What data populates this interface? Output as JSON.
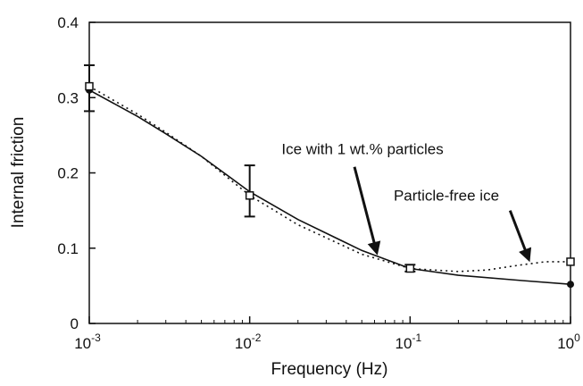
{
  "chart_data": {
    "type": "line",
    "xscale": "log",
    "xlim": [
      0.001,
      1
    ],
    "ylim": [
      0,
      0.4
    ],
    "grid": false,
    "xlabel": "Frequency (Hz)",
    "ylabel": "Internal friction",
    "x_ticks": [
      {
        "value": 0.001,
        "base": "10",
        "exp": "-3"
      },
      {
        "value": 0.01,
        "base": "10",
        "exp": "-2"
      },
      {
        "value": 0.1,
        "base": "10",
        "exp": "-1"
      },
      {
        "value": 1,
        "base": "10",
        "exp": "0"
      }
    ],
    "y_ticks": [
      {
        "value": 0,
        "label": "0"
      },
      {
        "value": 0.1,
        "label": "0.1"
      },
      {
        "value": 0.2,
        "label": "0.2"
      },
      {
        "value": 0.3,
        "label": "0.3"
      },
      {
        "value": 0.4,
        "label": "0.4"
      }
    ],
    "series": [
      {
        "style": "solid",
        "color": "#111111",
        "x": [
          0.001,
          0.002,
          0.003,
          0.005,
          0.01,
          0.02,
          0.05,
          0.1,
          0.2,
          0.5,
          1
        ],
        "y": [
          0.31,
          0.275,
          0.252,
          0.222,
          0.175,
          0.138,
          0.097,
          0.073,
          0.064,
          0.057,
          0.052
        ],
        "markers": [
          {
            "x": 0.001,
            "y": 0.31,
            "shape": "circle"
          },
          {
            "x": 1,
            "y": 0.052,
            "shape": "circle"
          }
        ]
      },
      {
        "style": "dotted",
        "color": "#111111",
        "x": [
          0.001,
          0.002,
          0.003,
          0.005,
          0.01,
          0.02,
          0.05,
          0.1,
          0.2,
          0.3,
          0.5,
          0.7,
          1
        ],
        "y": [
          0.315,
          0.278,
          0.254,
          0.222,
          0.17,
          0.131,
          0.092,
          0.073,
          0.069,
          0.071,
          0.078,
          0.082,
          0.082
        ],
        "markers": [
          {
            "x": 0.001,
            "y": 0.315,
            "err": [
              0.282,
              0.343
            ]
          },
          {
            "x": 0.01,
            "y": 0.17,
            "err": [
              0.142,
              0.21
            ]
          },
          {
            "x": 0.1,
            "y": 0.073,
            "err": [
              0.069,
              0.078
            ]
          },
          {
            "x": 1,
            "y": 0.082,
            "err": null
          }
        ]
      }
    ],
    "annotations": [
      {
        "text": "Ice with 1 wt.% particles",
        "label_x": 0.0158,
        "label_y": 0.225,
        "arrow_from": [
          0.045,
          0.208
        ],
        "arrow_to": [
          0.062,
          0.094
        ]
      },
      {
        "text": "Particle-free ice",
        "label_x": 0.079,
        "label_y": 0.163,
        "arrow_from": [
          0.42,
          0.15
        ],
        "arrow_to": [
          0.55,
          0.085
        ]
      }
    ]
  }
}
